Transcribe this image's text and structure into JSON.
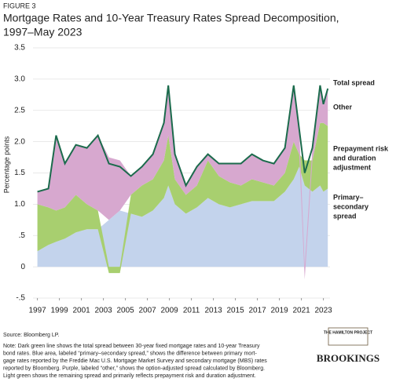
{
  "chart_data": {
    "type": "stacked_area",
    "figure_label": "FIGURE 3",
    "title_lines": [
      "Mortgage Rates and 10-Year Treasury Rates Spread Decomposition,",
      "1997–May 2023"
    ],
    "y_label": "Percentage points",
    "x": [
      1997.0,
      1998.0,
      1998.7,
      1999.5,
      2000.5,
      2001.5,
      2002.5,
      2003.5,
      2004.5,
      2005.5,
      2006.5,
      2007.5,
      2008.5,
      2008.9,
      2009.5,
      2010.5,
      2011.5,
      2012.5,
      2013.5,
      2014.5,
      2015.5,
      2016.5,
      2017.5,
      2018.5,
      2019.5,
      2020.3,
      2020.8,
      2021.3,
      2022.0,
      2022.7,
      2023.0,
      2023.4
    ],
    "series": [
      {
        "name": "Primary–secondary spread",
        "label_lines": [
          "Primary–",
          "secondary",
          "spread"
        ],
        "color": "#c3d3ec",
        "values": [
          0.25,
          0.35,
          0.4,
          0.45,
          0.55,
          0.6,
          0.6,
          0.75,
          0.9,
          0.85,
          0.8,
          0.9,
          1.1,
          1.3,
          1.0,
          0.85,
          0.95,
          1.1,
          1.0,
          0.95,
          1.0,
          1.05,
          1.05,
          1.05,
          1.2,
          1.4,
          1.6,
          1.3,
          1.2,
          1.3,
          1.2,
          1.25
        ]
      },
      {
        "name": "Prepayment risk and duration adjustment",
        "label_lines": [
          "Prepayment risk",
          "and duration",
          "adjustment"
        ],
        "color": "#a8cf6f",
        "values": [
          0.75,
          0.6,
          0.5,
          0.5,
          0.6,
          0.4,
          0.3,
          -0.1,
          -0.1,
          0.3,
          0.5,
          0.5,
          0.6,
          0.8,
          0.4,
          0.3,
          0.35,
          0.6,
          0.45,
          0.4,
          0.3,
          0.35,
          0.3,
          0.25,
          0.3,
          0.6,
          0.2,
          0.4,
          0.5,
          1.0,
          1.1,
          1.0
        ]
      },
      {
        "name": "Other",
        "label_lines": [
          "Other"
        ],
        "color": "#d7a8cf",
        "values": [
          0.2,
          0.3,
          1.2,
          0.7,
          0.8,
          0.9,
          1.2,
          1.0,
          0.8,
          0.3,
          0.3,
          0.4,
          0.6,
          0.8,
          0.4,
          0.15,
          0.3,
          0.1,
          0.2,
          0.3,
          0.35,
          0.4,
          0.35,
          0.35,
          0.4,
          0.9,
          0.4,
          -0.2,
          0.2,
          0.6,
          0.3,
          0.6
        ]
      }
    ],
    "total": {
      "name": "Total spread",
      "color": "#1b6b4c",
      "values": [
        1.2,
        1.25,
        2.1,
        1.65,
        1.95,
        1.9,
        2.1,
        1.65,
        1.6,
        1.45,
        1.6,
        1.8,
        2.3,
        2.9,
        1.8,
        1.3,
        1.6,
        1.8,
        1.65,
        1.65,
        1.65,
        1.8,
        1.7,
        1.65,
        1.9,
        2.9,
        2.2,
        1.5,
        1.9,
        2.9,
        2.6,
        2.85
      ]
    },
    "xlim": [
      1996.6,
      2023.6
    ],
    "xticks": [
      1997,
      1999,
      2001,
      2003,
      2005,
      2007,
      2009,
      2011,
      2013,
      2015,
      2017,
      2019,
      2021,
      2023
    ],
    "ylim": [
      -0.5,
      3.5
    ],
    "yticks": [
      {
        "value": -0.5,
        "label": "-.5"
      },
      0,
      {
        "value": 0.5,
        "label": ".5"
      },
      {
        "value": 1,
        "label": "1.0"
      },
      {
        "value": 1.5,
        "label": "1.5"
      },
      {
        "value": 2,
        "label": "2.0"
      },
      {
        "value": 2.5,
        "label": "2.5"
      },
      {
        "value": 3,
        "label": "3.0"
      },
      {
        "value": 3.5,
        "label": "3.5"
      }
    ],
    "grid": true
  },
  "footer": {
    "source": "Source: Bloomberg LP.",
    "note_lines": [
      "Note: Dark green line shows the total spread between 30-year fixed mortgage rates and 10-year Treasury",
      "bond rates. Blue area, labeled “primary–secondary spread,” shows the difference between primary mort-",
      "gage rates reported by the Freddie Mac U.S. Mortgage Market Survey and secondary mortgage (MBS) rates",
      "reported by Bloomberg. Purple, labeled “other,” shows the option-adjusted spread calculated by Bloomberg.",
      "Light green shows the remaining spread and primarily reflects prepayment risk and duration adjustment."
    ],
    "logo_top": "THE HAMILTON PROJECT",
    "logo_bottom": "BROOKINGS"
  }
}
